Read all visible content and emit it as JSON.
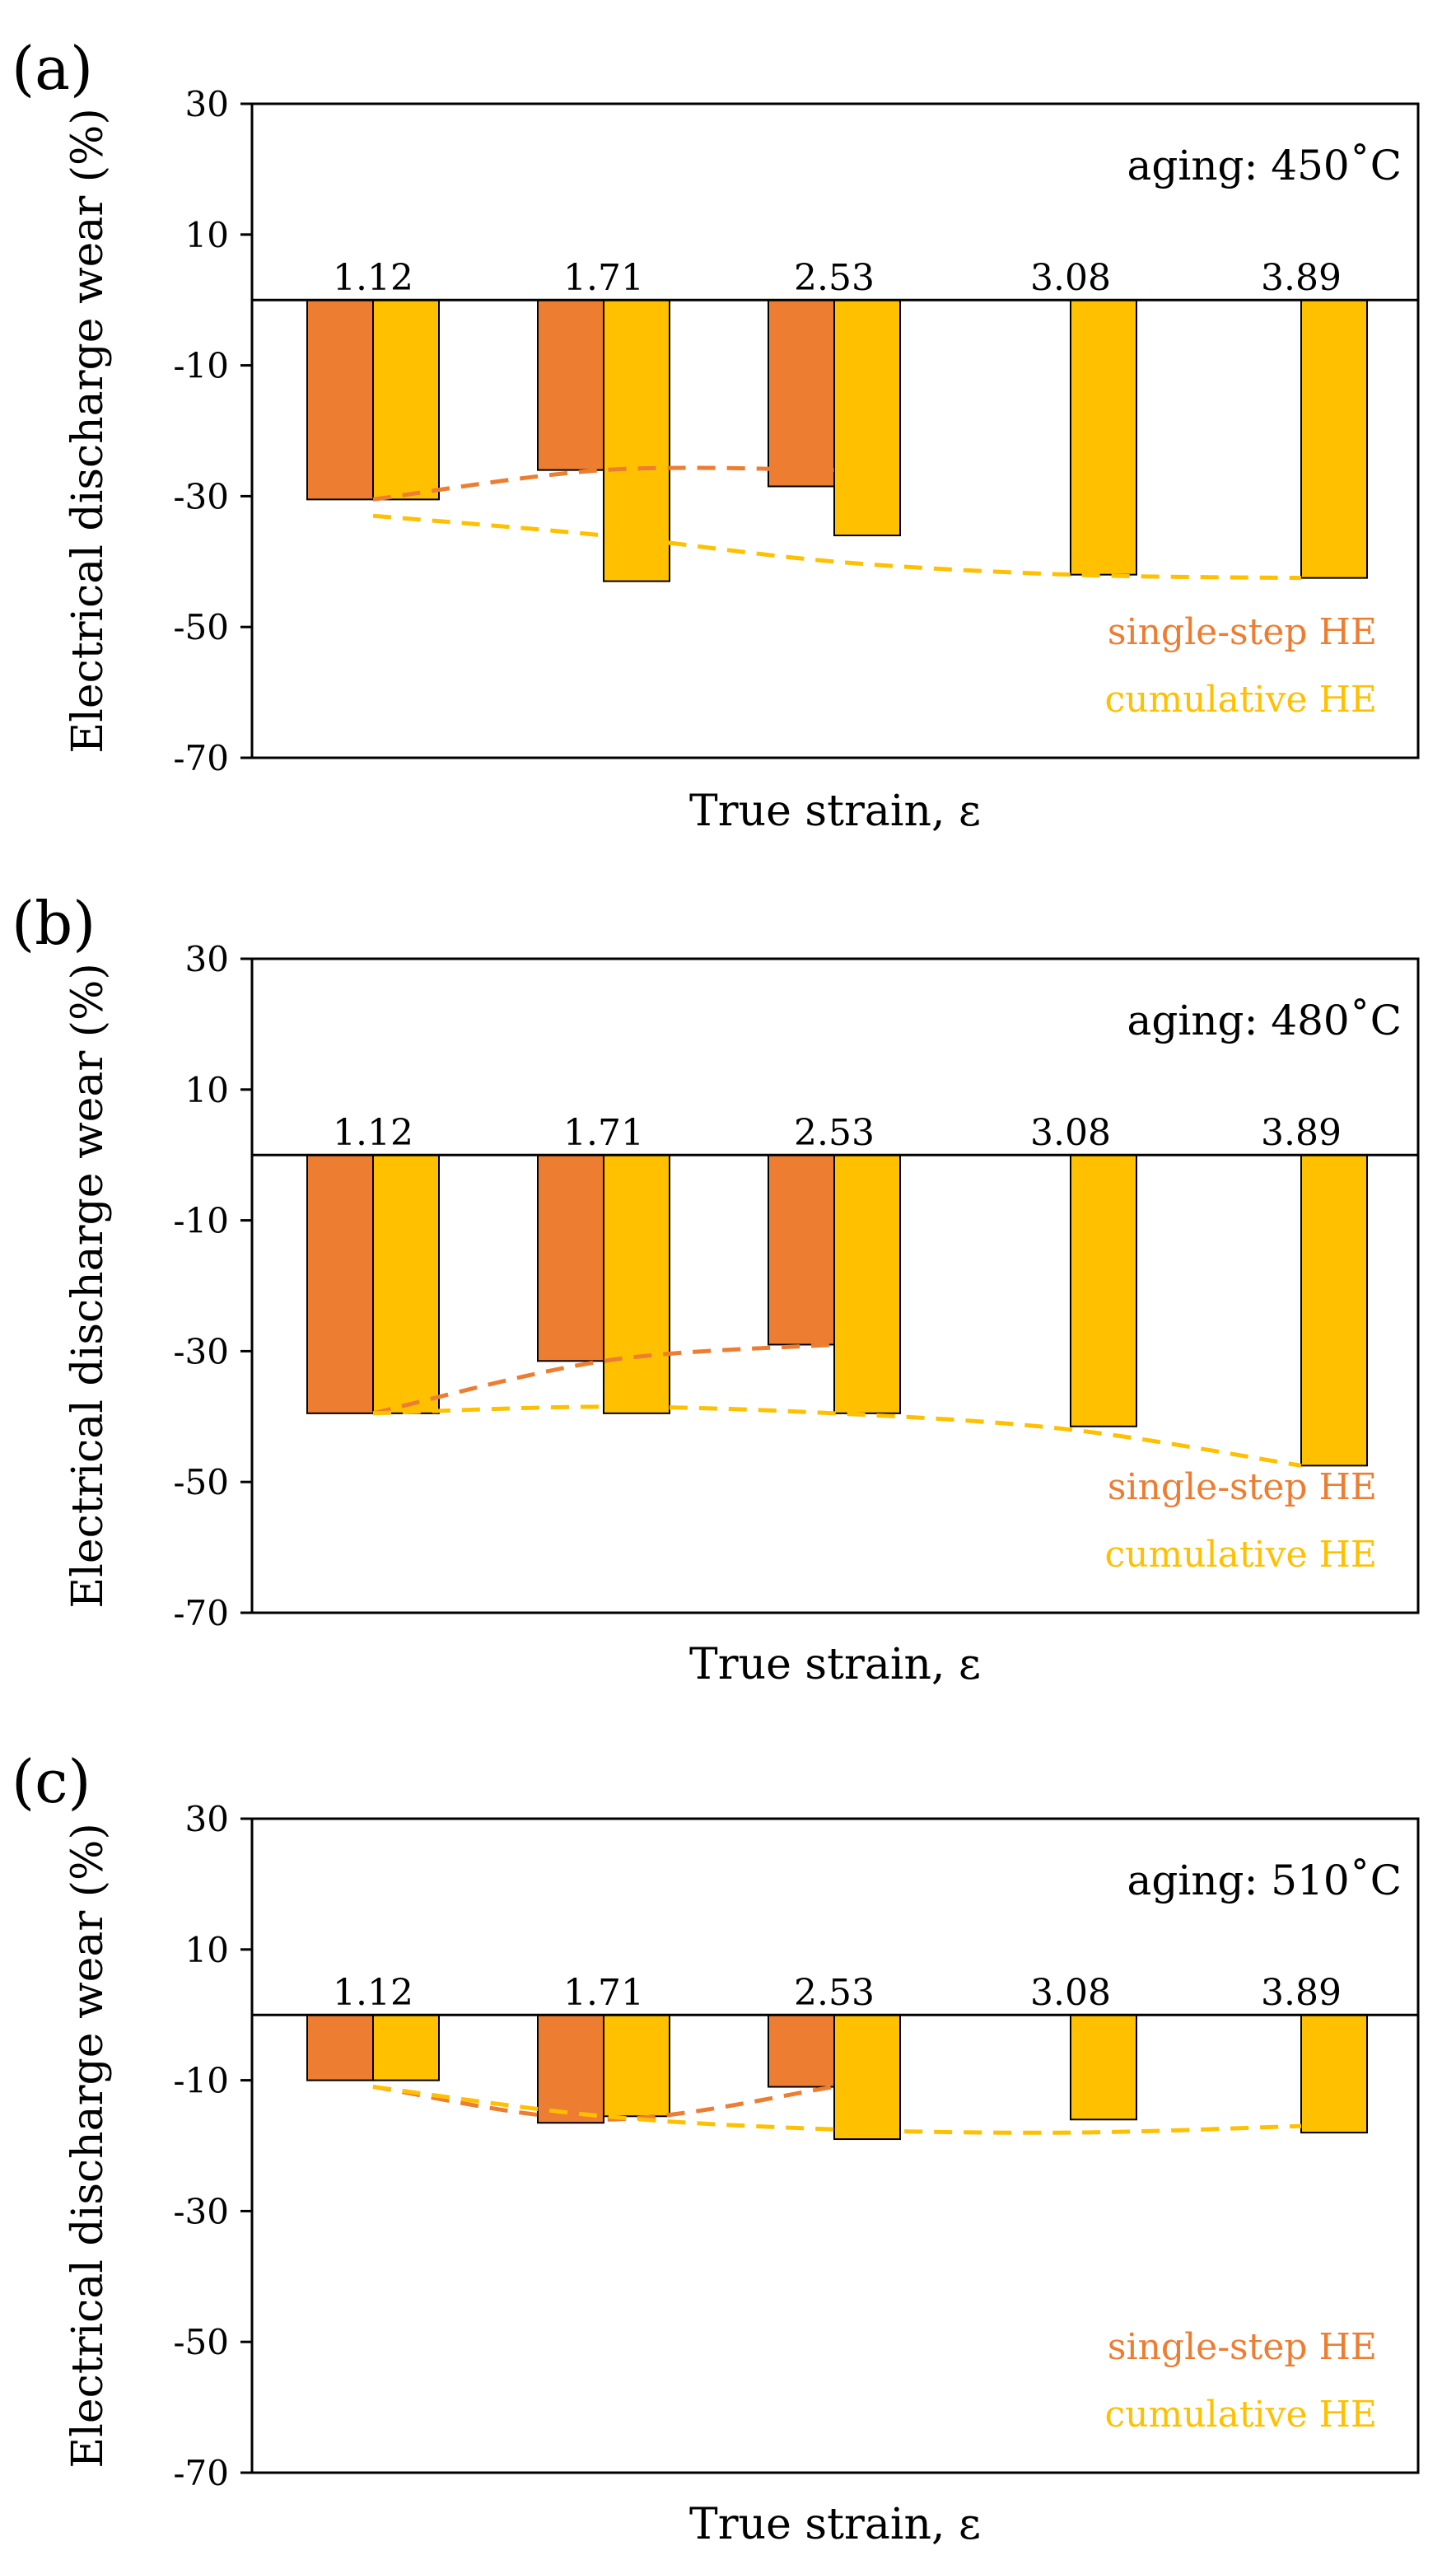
{
  "chart_data": [
    {
      "type": "bar",
      "panel_label": "(a)",
      "annotation": "aging: 450˚C",
      "xlabel": "True strain, ε",
      "ylabel": "Electrical discharge wear (%)",
      "ylim": [
        -70,
        30
      ],
      "yticks": [
        "30",
        "10",
        "-10",
        "-30",
        "-50",
        "-70"
      ],
      "categories": [
        "1.12",
        "1.71",
        "2.53",
        "3.08",
        "3.89"
      ],
      "series": [
        {
          "name": "single-step HE",
          "color": "#ED7D31",
          "values": [
            -30.5,
            -26,
            -28.5,
            null,
            null
          ]
        },
        {
          "name": "cumulative HE",
          "color": "#FFC000",
          "values": [
            -30.5,
            -43,
            -36,
            -42,
            -42.5
          ]
        }
      ],
      "trend_single": [
        -30.5,
        -26,
        -26
      ],
      "trend_cumulative": [
        -33,
        -36,
        -40,
        -42,
        -42.5
      ]
    },
    {
      "type": "bar",
      "panel_label": "(b)",
      "annotation": "aging: 480˚C",
      "xlabel": "True strain, ε",
      "ylabel": "Electrical discharge wear (%)",
      "ylim": [
        -70,
        30
      ],
      "yticks": [
        "30",
        "10",
        "-10",
        "-30",
        "-50",
        "-70"
      ],
      "categories": [
        "1.12",
        "1.71",
        "2.53",
        "3.08",
        "3.89"
      ],
      "series": [
        {
          "name": "single-step HE",
          "color": "#ED7D31",
          "values": [
            -39.5,
            -31.5,
            -29,
            null,
            null
          ]
        },
        {
          "name": "cumulative HE",
          "color": "#FFC000",
          "values": [
            -39.5,
            -39.5,
            -39.5,
            -41.5,
            -47.5
          ]
        }
      ],
      "trend_single": [
        -39.5,
        -31.5,
        -29
      ],
      "trend_cumulative": [
        -39.5,
        -38.5,
        -39.5,
        -42,
        -47.5
      ]
    },
    {
      "type": "bar",
      "panel_label": "(c)",
      "annotation": "aging: 510˚C",
      "xlabel": "True strain, ε",
      "ylabel": "Electrical discharge wear (%)",
      "ylim": [
        -70,
        30
      ],
      "yticks": [
        "30",
        "10",
        "-10",
        "-30",
        "-50",
        "-70"
      ],
      "categories": [
        "1.12",
        "1.71",
        "2.53",
        "3.08",
        "3.89"
      ],
      "series": [
        {
          "name": "single-step HE",
          "color": "#ED7D31",
          "values": [
            -10,
            -16.5,
            -11,
            null,
            null
          ]
        },
        {
          "name": "cumulative HE",
          "color": "#FFC000",
          "values": [
            -10,
            -15.5,
            -19,
            -16,
            -18
          ]
        }
      ],
      "trend_single": [
        -11,
        -16,
        -11
      ],
      "trend_cumulative": [
        -11,
        -15.5,
        -17.5,
        -18,
        -17
      ]
    }
  ]
}
